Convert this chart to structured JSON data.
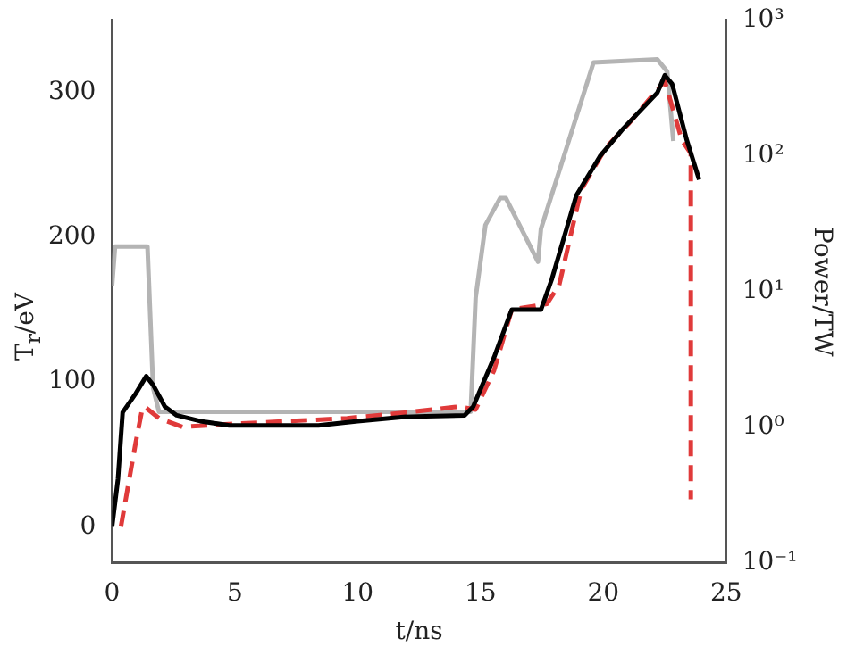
{
  "chart_data": {
    "type": "line",
    "xlabel": "t/ns",
    "ylabel": "T$_{r}$/eV",
    "y2label": "Power/TW",
    "xlim": [
      0,
      25
    ],
    "xticks": [
      0,
      5,
      10,
      15,
      20,
      25
    ],
    "ylim": [
      -25,
      350
    ],
    "yticks": [
      0,
      100,
      200,
      300
    ],
    "y2lim": [
      0.1,
      1000
    ],
    "y2ticks": [
      {
        "value": 0.1,
        "label": "10⁻¹"
      },
      {
        "value": 1,
        "label": "10⁰"
      },
      {
        "value": 10,
        "label": "10¹"
      },
      {
        "value": 100,
        "label": "10²"
      },
      {
        "value": 1000,
        "label": "10³"
      }
    ],
    "log": "y2",
    "grid": false,
    "legend": false,
    "marker": "none",
    "series": [
      {
        "color": "#000000",
        "line_style": "solid",
        "x": [
          0,
          0.24,
          0.43,
          0.96,
          1.39,
          1.67,
          2.15,
          2.63,
          3.59,
          4.78,
          7.18,
          8.4,
          10,
          11.96,
          14.35,
          14.7,
          15.55,
          16.27,
          17.46,
          17.9,
          18.9,
          19.86,
          20.8,
          22.2,
          22.5,
          22.8,
          23.4,
          23.9
        ],
        "values": [
          0,
          33,
          79,
          92,
          104,
          98,
          83,
          77,
          73,
          70,
          70,
          70,
          73,
          76,
          77,
          83,
          117,
          150,
          150,
          171,
          229,
          256,
          275,
          300,
          312,
          306,
          267,
          240
        ]
      },
      {
        "color": "#e03a3a",
        "line_style": "dashed",
        "x": [
          0.36,
          0.96,
          1.2,
          1.32,
          1.91,
          2.87,
          4.78,
          7.18,
          9.57,
          12,
          14.1,
          14.8,
          15.55,
          16.27,
          17.7,
          18.2,
          19.1,
          20.1,
          21.05,
          22.5,
          23.2,
          23.56,
          23.56
        ],
        "values": [
          0,
          58,
          79,
          83,
          75,
          69,
          71,
          73,
          75,
          79,
          83,
          81,
          108,
          150,
          154,
          167,
          233,
          262,
          279,
          308,
          267,
          258,
          19
        ]
      },
      {
        "color": "#b4b4b4",
        "line_style": "solid",
        "axis": "y2",
        "x": [
          0,
          0.12,
          1.44,
          1.67,
          1.91,
          4,
          14.6,
          14.8,
          15.2,
          15.8,
          16.03,
          17.34,
          17.46,
          19.6,
          22.2,
          22.6,
          22.85
        ],
        "values": [
          11,
          21.5,
          21.5,
          1.95,
          1.3,
          1.3,
          1.3,
          9,
          31,
          49,
          49,
          16.6,
          29,
          490,
          515,
          420,
          129
        ]
      }
    ]
  }
}
